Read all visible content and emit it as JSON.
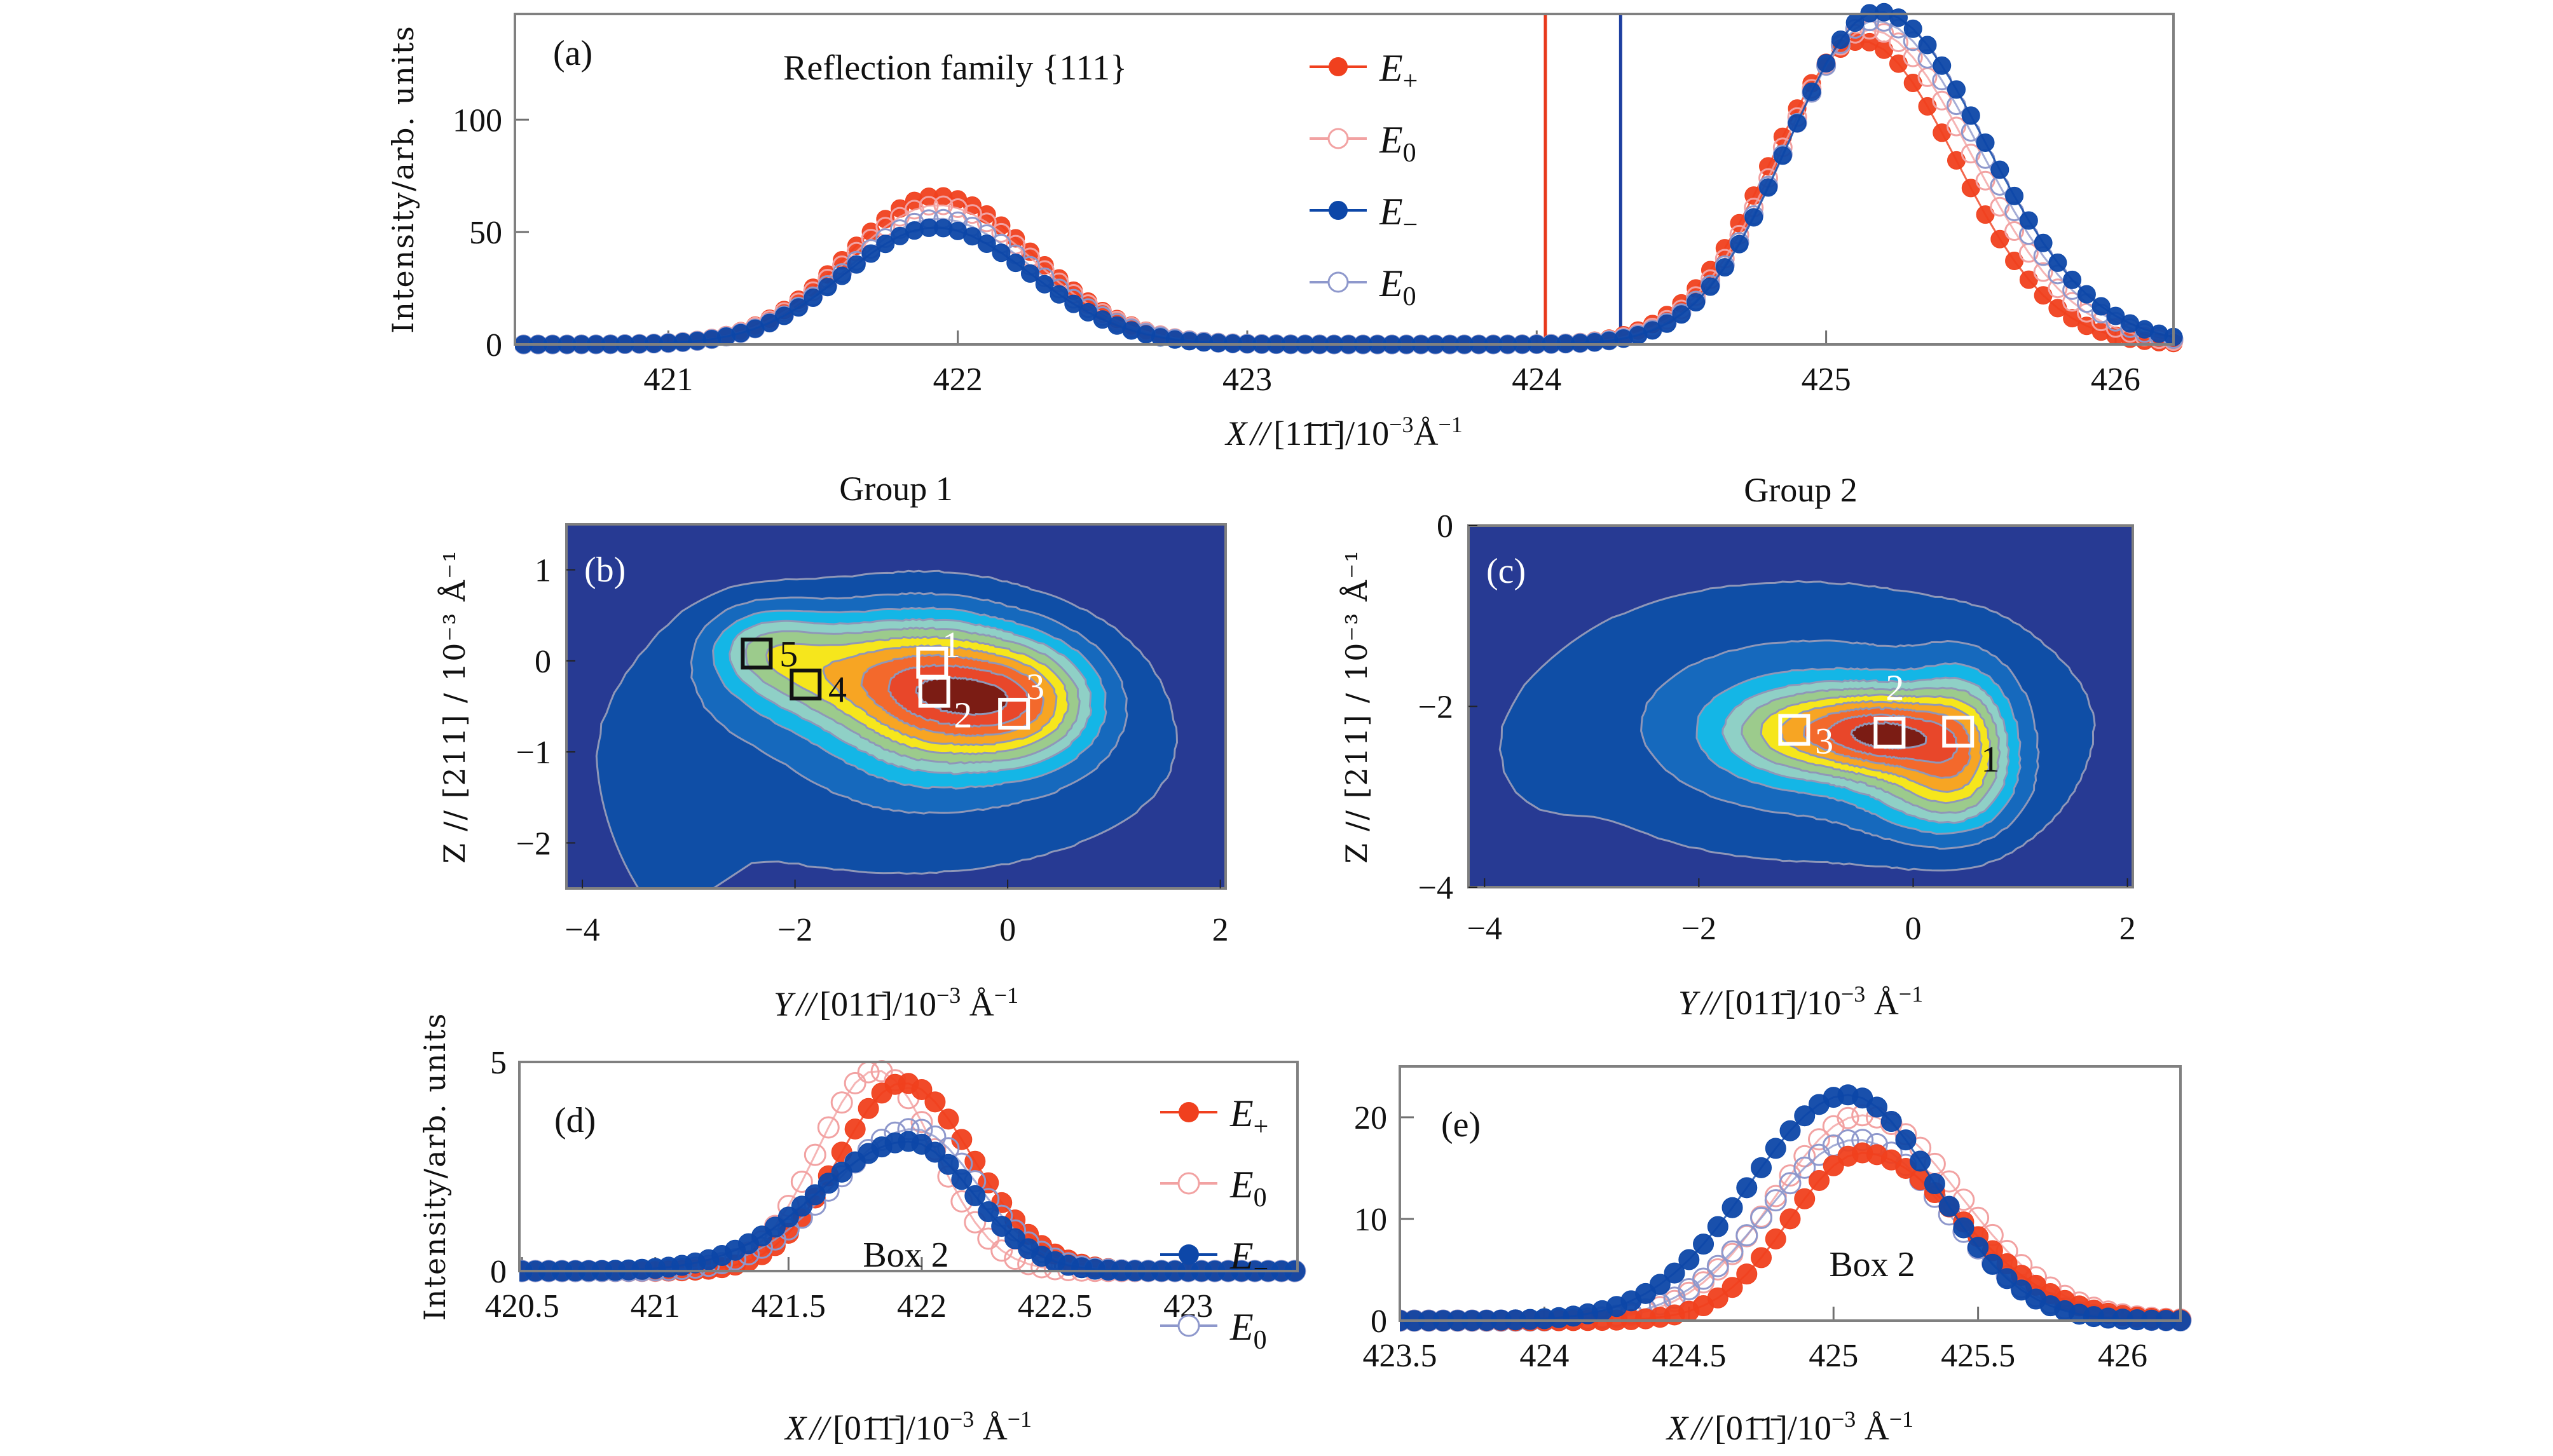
{
  "figure": {
    "colors": {
      "E_plus": "#f0401e",
      "E0_red": "#f2a2a2",
      "E_minus": "#0d47a8",
      "E0_blue": "#8e98cc",
      "vline_red": "#e8391c",
      "vline_blue": "#1d3fa0",
      "contour_levels": [
        "#273a93",
        "#0f4ea6",
        "#1669bd",
        "#14b6e6",
        "#8fd0c6",
        "#9ccb8c",
        "#f6e61c",
        "#f7a523",
        "#f3692c",
        "#e8472a",
        "#7b1c14"
      ],
      "contour_line": "#8f97b8"
    },
    "legend": {
      "entries": [
        {
          "label": "E",
          "sub": "+",
          "key": "E_plus",
          "filled": true
        },
        {
          "label": "E",
          "sub": "0",
          "key": "E0_red",
          "filled": false
        },
        {
          "label": "E",
          "sub": "−",
          "key": "E_minus",
          "filled": true
        },
        {
          "label": "E",
          "sub": "0",
          "key": "E0_blue",
          "filled": false
        }
      ]
    }
  },
  "chart_data": [
    {
      "id": "a",
      "type": "scatter",
      "panel_label": "(a)",
      "title": "Reflection family {111}",
      "xlabel": "X // [1 1̄ 1̄] / 10⁻³ Å⁻¹",
      "xlabel_parts": {
        "var": "X",
        "par": "//",
        "dir": "[11̄1̄]",
        "unit": "/10",
        "exp": "−3",
        "ang": "Å",
        "exp2": "−1"
      },
      "ylabel": "Intensity/arb. units",
      "xlim": [
        420.47,
        426.2
      ],
      "ylim": [
        0,
        147
      ],
      "xticks": [
        421,
        422,
        423,
        424,
        425,
        426
      ],
      "yticks": [
        0,
        50,
        100
      ],
      "grid": false,
      "legend_position": "top-center",
      "vlines": [
        {
          "x": 424.03,
          "color_key": "vline_red"
        },
        {
          "x": 424.29,
          "color_key": "vline_blue"
        }
      ],
      "sampling": {
        "start": 420.5,
        "step": 0.05,
        "end": 426.2
      },
      "series": [
        {
          "name": "E+",
          "key": "E_plus",
          "filled": true,
          "peaks": [
            {
              "center": 421.93,
              "amplitude": 66,
              "sigma_left": 0.31,
              "sigma_right": 0.33
            },
            {
              "center": 425.12,
              "amplitude": 135,
              "sigma_left": 0.31,
              "sigma_right": 0.33
            }
          ]
        },
        {
          "name": "E0",
          "key": "E0_red",
          "filled": false,
          "peaks": [
            {
              "center": 421.93,
              "amplitude": 62,
              "sigma_left": 0.31,
              "sigma_right": 0.33
            },
            {
              "center": 425.15,
              "amplitude": 140,
              "sigma_left": 0.31,
              "sigma_right": 0.35
            }
          ]
        },
        {
          "name": "E0",
          "key": "E0_blue",
          "filled": false,
          "peaks": [
            {
              "center": 421.93,
              "amplitude": 56,
              "sigma_left": 0.31,
              "sigma_right": 0.33
            },
            {
              "center": 425.17,
              "amplitude": 144,
              "sigma_left": 0.31,
              "sigma_right": 0.36
            }
          ]
        },
        {
          "name": "E−",
          "key": "E_minus",
          "filled": true,
          "peaks": [
            {
              "center": 421.92,
              "amplitude": 52,
              "sigma_left": 0.31,
              "sigma_right": 0.33
            },
            {
              "center": 425.18,
              "amplitude": 148,
              "sigma_left": 0.31,
              "sigma_right": 0.37
            }
          ]
        }
      ]
    },
    {
      "id": "b",
      "type": "heatmap",
      "panel_label": "(b)",
      "title": "Group 1",
      "xlabel": "Y // [0 1 1̄] / 10⁻³ Å⁻¹",
      "xlabel_parts": {
        "var": "Y",
        "par": "//",
        "dir": "[011̄]",
        "unit": "/10",
        "exp": "−3",
        "ang": " Å",
        "exp2": "−1"
      },
      "ylabel": "Z // [211] / 10⁻³ Å⁻¹",
      "xlim": [
        -4.15,
        2.05
      ],
      "ylim": [
        -2.5,
        1.5
      ],
      "xticks": [
        -4,
        -2,
        0,
        2
      ],
      "yticks": [
        -2,
        -1,
        0,
        1
      ],
      "levels": [
        0.03,
        0.09,
        0.17,
        0.26,
        0.35,
        0.45,
        0.56,
        0.68,
        0.8,
        0.92
      ],
      "center": [
        -0.6,
        -0.35
      ],
      "components": [
        {
          "x": -0.68,
          "y": -0.35,
          "sx": 0.55,
          "sy": 0.5,
          "a": 1.0
        },
        {
          "x": 0.15,
          "y": -0.45,
          "sx": 0.45,
          "sy": 0.42,
          "a": 0.72
        },
        {
          "x": -1.7,
          "y": -0.1,
          "sx": 0.55,
          "sy": 0.4,
          "a": 0.48
        },
        {
          "x": -2.3,
          "y": 0.15,
          "sx": 0.35,
          "sy": 0.3,
          "a": 0.3
        },
        {
          "x": -1.0,
          "y": -1.0,
          "sx": 1.7,
          "sy": 0.9,
          "a": 0.12
        },
        {
          "x": -3.2,
          "y": -1.6,
          "sx": 0.4,
          "sy": 1.2,
          "a": 0.05
        }
      ],
      "boxes": [
        {
          "label": "1",
          "x": -0.71,
          "y": -0.02,
          "color": "#ffffff",
          "label_dx": 0.18,
          "label_dy": 0.2
        },
        {
          "label": "2",
          "x": -0.69,
          "y": -0.34,
          "color": "#ffffff",
          "label_dx": 0.27,
          "label_dy": -0.25
        },
        {
          "label": "3",
          "x": 0.06,
          "y": -0.58,
          "color": "#ffffff",
          "label_dx": 0.2,
          "label_dy": 0.3
        },
        {
          "label": "4",
          "x": -1.9,
          "y": -0.26,
          "color": "#111111",
          "label_dx": 0.3,
          "label_dy": -0.05
        },
        {
          "label": "5",
          "x": -2.36,
          "y": 0.08,
          "color": "#111111",
          "label_dx": 0.3,
          "label_dy": 0.0
        }
      ]
    },
    {
      "id": "c",
      "type": "heatmap",
      "panel_label": "(c)",
      "title": "Group 2",
      "xlabel": "Y // [0 1 1̄] / 10⁻³ Å⁻¹",
      "xlabel_parts": {
        "var": "Y",
        "par": "//",
        "dir": "[011̄]",
        "unit": "/10",
        "exp": "−3",
        "ang": " Å",
        "exp2": "−1"
      },
      "ylabel": "Z // [211] / 10⁻³ Å⁻¹",
      "xlim": [
        -4.15,
        2.05
      ],
      "ylim": [
        -4,
        0
      ],
      "xticks": [
        -4,
        -2,
        0,
        2
      ],
      "yticks": [
        -4,
        -2,
        0
      ],
      "levels": [
        0.03,
        0.09,
        0.17,
        0.26,
        0.35,
        0.45,
        0.56,
        0.68,
        0.8,
        0.92
      ],
      "center": [
        -0.3,
        -2.35
      ],
      "components": [
        {
          "x": -0.22,
          "y": -2.3,
          "sx": 0.42,
          "sy": 0.3,
          "a": 1.0
        },
        {
          "x": -1.0,
          "y": -2.28,
          "sx": 0.5,
          "sy": 0.32,
          "a": 0.62
        },
        {
          "x": 0.45,
          "y": -2.4,
          "sx": 0.3,
          "sy": 0.5,
          "a": 0.62
        },
        {
          "x": 0.2,
          "y": -2.9,
          "sx": 0.45,
          "sy": 0.35,
          "a": 0.4
        },
        {
          "x": -0.8,
          "y": -2.3,
          "sx": 1.3,
          "sy": 0.75,
          "a": 0.2
        },
        {
          "x": -1.3,
          "y": -1.9,
          "sx": 1.7,
          "sy": 1.0,
          "a": 0.07
        },
        {
          "x": -3.4,
          "y": -2.6,
          "sx": 0.3,
          "sy": 0.4,
          "a": 0.05
        }
      ],
      "boxes": [
        {
          "label": "1",
          "x": 0.42,
          "y": -2.28,
          "color": "#111111",
          "boxcolor": "#ffffff",
          "label_dx": 0.3,
          "label_dy": -0.3
        },
        {
          "label": "2",
          "x": -0.22,
          "y": -2.29,
          "color": "#ffffff",
          "label_dx": 0.05,
          "label_dy": 0.5
        },
        {
          "label": "3",
          "x": -1.11,
          "y": -2.26,
          "color": "#ffffff",
          "label_dx": 0.28,
          "label_dy": -0.12
        }
      ]
    },
    {
      "id": "d",
      "type": "scatter",
      "panel_label": "(d)",
      "annotation": "Box 2",
      "xlabel": "X // [0 1̄ 1̄] / 10⁻³ Å⁻¹",
      "xlabel_parts": {
        "var": "X",
        "par": "//",
        "dir": "[01̄1̄]",
        "unit": "/10",
        "exp": "−3",
        "ang": " Å",
        "exp2": "−1"
      },
      "ylabel": "Intensity/arb. units",
      "xlim": [
        420.49,
        423.41
      ],
      "ylim": [
        0,
        5
      ],
      "xticks": [
        420.5,
        421.0,
        421.5,
        422.0,
        422.5,
        423.0
      ],
      "yticks": [
        0,
        5
      ],
      "grid": false,
      "legend_position": "right",
      "sampling": {
        "start": 420.5,
        "step": 0.05,
        "end": 423.4
      },
      "series": [
        {
          "name": "E0",
          "key": "E0_red",
          "filled": false,
          "peaks": [
            {
              "center": 421.83,
              "amplitude": 4.8,
              "sigma_left": 0.22,
              "sigma_right": 0.22
            }
          ]
        },
        {
          "name": "E+",
          "key": "E_plus",
          "filled": true,
          "peaks": [
            {
              "center": 421.93,
              "amplitude": 4.5,
              "sigma_left": 0.24,
              "sigma_right": 0.26
            }
          ]
        },
        {
          "name": "E0",
          "key": "E0_blue",
          "filled": false,
          "peaks": [
            {
              "center": 421.97,
              "amplitude": 3.4,
              "sigma_left": 0.3,
              "sigma_right": 0.24
            }
          ]
        },
        {
          "name": "E−",
          "key": "E_minus",
          "filled": true,
          "peaks": [
            {
              "center": 421.95,
              "amplitude": 3.1,
              "sigma_left": 0.34,
              "sigma_right": 0.24
            }
          ]
        }
      ]
    },
    {
      "id": "e",
      "type": "scatter",
      "panel_label": "(e)",
      "annotation": "Box 2",
      "xlabel": "X // [0 1̄ 1̄] / 10⁻³ Å⁻¹",
      "xlabel_parts": {
        "var": "X",
        "par": "//",
        "dir": "[01̄1̄]",
        "unit": "/10",
        "exp": "−3",
        "ang": " Å",
        "exp2": "−1"
      },
      "ylabel": "",
      "xlim": [
        423.5,
        426.2
      ],
      "ylim": [
        0,
        25
      ],
      "xticks": [
        423.5,
        424.0,
        424.5,
        425.0,
        425.5,
        426.0
      ],
      "yticks": [
        0,
        10,
        20
      ],
      "grid": false,
      "sampling": {
        "start": 423.5,
        "step": 0.05,
        "end": 426.2
      },
      "series": [
        {
          "name": "E0",
          "key": "E0_red",
          "filled": false,
          "peaks": [
            {
              "center": 425.1,
              "amplitude": 20.2,
              "sigma_left": 0.3,
              "sigma_right": 0.34
            }
          ]
        },
        {
          "name": "E0",
          "key": "E0_blue",
          "filled": false,
          "peaks": [
            {
              "center": 425.08,
              "amplitude": 17.8,
              "sigma_left": 0.31,
              "sigma_right": 0.31
            }
          ]
        },
        {
          "name": "E+",
          "key": "E_plus",
          "filled": true,
          "peaks": [
            {
              "center": 425.1,
              "amplitude": 16.5,
              "sigma_left": 0.25,
              "sigma_right": 0.34
            }
          ]
        },
        {
          "name": "E−",
          "key": "E_minus",
          "filled": true,
          "peaks": [
            {
              "center": 425.05,
              "amplitude": 22.2,
              "sigma_left": 0.34,
              "sigma_right": 0.3
            }
          ]
        }
      ]
    }
  ]
}
